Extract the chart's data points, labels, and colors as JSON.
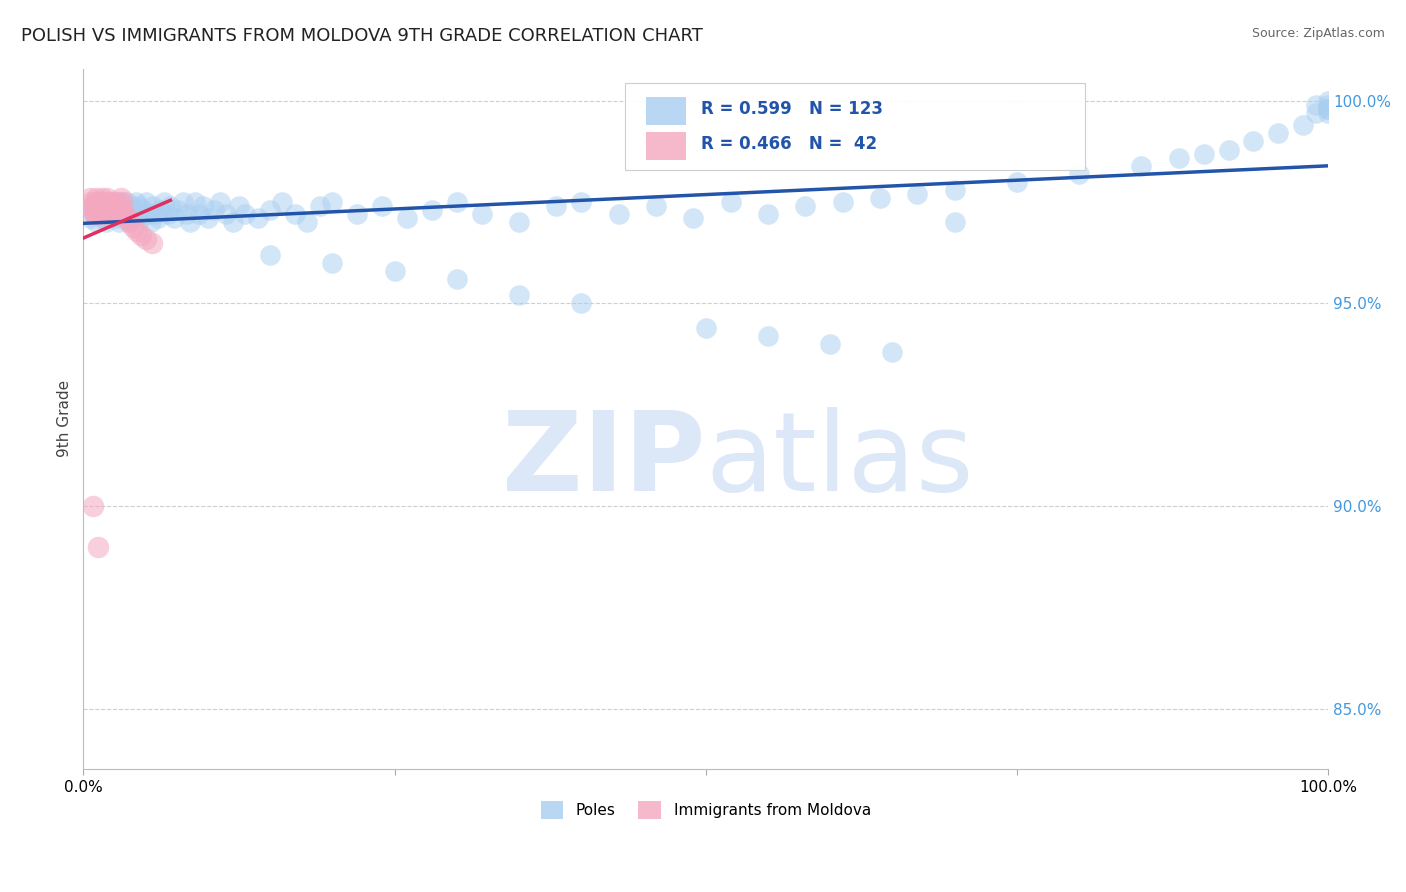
{
  "title": "POLISH VS IMMIGRANTS FROM MOLDOVA 9TH GRADE CORRELATION CHART",
  "source": "Source: ZipAtlas.com",
  "ylabel": "9th Grade",
  "blue_R": 0.599,
  "blue_N": 123,
  "pink_R": 0.466,
  "pink_N": 42,
  "blue_color": "#A8CEF0",
  "pink_color": "#F4A8C0",
  "blue_line_color": "#2255AA",
  "pink_line_color": "#E03060",
  "background_color": "#FFFFFF",
  "grid_color": "#BBBBBB",
  "watermark_color": "#DCE8F8",
  "xlim": [
    0.0,
    1.0
  ],
  "ylim": [
    0.835,
    1.008
  ],
  "yticks": [
    0.85,
    0.9,
    0.95,
    1.0
  ],
  "ytick_labels": [
    "85.0%",
    "90.0%",
    "95.0%",
    "100.0%"
  ],
  "blue_x": [
    0.005,
    0.008,
    0.009,
    0.01,
    0.01,
    0.01,
    0.012,
    0.013,
    0.015,
    0.015,
    0.016,
    0.017,
    0.018,
    0.018,
    0.019,
    0.02,
    0.02,
    0.021,
    0.022,
    0.022,
    0.023,
    0.024,
    0.025,
    0.025,
    0.026,
    0.027,
    0.028,
    0.029,
    0.03,
    0.03,
    0.031,
    0.032,
    0.033,
    0.034,
    0.035,
    0.036,
    0.037,
    0.038,
    0.039,
    0.04,
    0.042,
    0.043,
    0.045,
    0.046,
    0.048,
    0.05,
    0.052,
    0.054,
    0.056,
    0.058,
    0.06,
    0.062,
    0.065,
    0.068,
    0.07,
    0.073,
    0.076,
    0.08,
    0.083,
    0.086,
    0.09,
    0.093,
    0.096,
    0.1,
    0.105,
    0.11,
    0.115,
    0.12,
    0.125,
    0.13,
    0.14,
    0.15,
    0.16,
    0.17,
    0.18,
    0.19,
    0.2,
    0.22,
    0.24,
    0.26,
    0.28,
    0.3,
    0.32,
    0.35,
    0.38,
    0.4,
    0.43,
    0.46,
    0.49,
    0.52,
    0.55,
    0.58,
    0.61,
    0.64,
    0.67,
    0.7,
    0.75,
    0.8,
    0.85,
    0.88,
    0.9,
    0.92,
    0.94,
    0.96,
    0.98,
    0.99,
    0.99,
    1.0,
    1.0,
    1.0,
    1.0,
    1.0,
    0.35,
    0.4,
    0.3,
    0.25,
    0.2,
    0.15,
    0.5,
    0.55,
    0.6,
    0.65,
    0.7
  ],
  "blue_y": [
    0.971,
    0.974,
    0.972,
    0.975,
    0.973,
    0.97,
    0.974,
    0.972,
    0.975,
    0.973,
    0.971,
    0.974,
    0.972,
    0.97,
    0.973,
    0.975,
    0.972,
    0.974,
    0.973,
    0.971,
    0.974,
    0.972,
    0.975,
    0.973,
    0.971,
    0.974,
    0.972,
    0.97,
    0.975,
    0.973,
    0.972,
    0.974,
    0.971,
    0.973,
    0.975,
    0.972,
    0.97,
    0.974,
    0.971,
    0.973,
    0.975,
    0.972,
    0.974,
    0.971,
    0.973,
    0.975,
    0.972,
    0.97,
    0.974,
    0.972,
    0.971,
    0.973,
    0.975,
    0.972,
    0.974,
    0.971,
    0.973,
    0.975,
    0.972,
    0.97,
    0.975,
    0.972,
    0.974,
    0.971,
    0.973,
    0.975,
    0.972,
    0.97,
    0.974,
    0.972,
    0.971,
    0.973,
    0.975,
    0.972,
    0.97,
    0.974,
    0.975,
    0.972,
    0.974,
    0.971,
    0.973,
    0.975,
    0.972,
    0.97,
    0.974,
    0.975,
    0.972,
    0.974,
    0.971,
    0.975,
    0.972,
    0.974,
    0.975,
    0.976,
    0.977,
    0.978,
    0.98,
    0.982,
    0.984,
    0.986,
    0.987,
    0.988,
    0.99,
    0.992,
    0.994,
    0.997,
    0.999,
    0.998,
    1.0,
    0.999,
    0.998,
    0.997,
    0.952,
    0.95,
    0.956,
    0.958,
    0.96,
    0.962,
    0.944,
    0.942,
    0.94,
    0.938,
    0.97
  ],
  "pink_x": [
    0.005,
    0.006,
    0.007,
    0.008,
    0.009,
    0.01,
    0.01,
    0.01,
    0.011,
    0.012,
    0.013,
    0.014,
    0.015,
    0.015,
    0.016,
    0.017,
    0.018,
    0.019,
    0.02,
    0.02,
    0.021,
    0.022,
    0.023,
    0.024,
    0.025,
    0.026,
    0.027,
    0.028,
    0.029,
    0.03,
    0.031,
    0.032,
    0.033,
    0.035,
    0.037,
    0.04,
    0.043,
    0.046,
    0.05,
    0.055,
    0.008,
    0.012
  ],
  "pink_y": [
    0.976,
    0.975,
    0.974,
    0.973,
    0.972,
    0.976,
    0.974,
    0.972,
    0.975,
    0.974,
    0.973,
    0.972,
    0.976,
    0.974,
    0.975,
    0.973,
    0.972,
    0.976,
    0.975,
    0.973,
    0.974,
    0.972,
    0.975,
    0.973,
    0.974,
    0.972,
    0.975,
    0.973,
    0.972,
    0.976,
    0.975,
    0.973,
    0.972,
    0.971,
    0.97,
    0.969,
    0.968,
    0.967,
    0.966,
    0.965,
    0.9,
    0.89
  ]
}
